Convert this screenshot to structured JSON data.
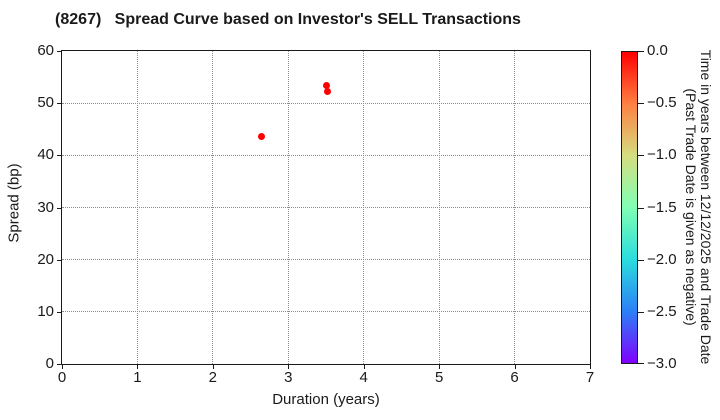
{
  "title": "(8267)   Spread Curve based on Investor's SELL Transactions",
  "chart_data": {
    "type": "scatter",
    "title": "(8267)   Spread Curve based on Investor's SELL Transactions",
    "xlabel": "Duration (years)",
    "ylabel": "Spread (bp)",
    "xlim": [
      0,
      7
    ],
    "ylim": [
      0,
      60
    ],
    "xticks": [
      0,
      1,
      2,
      3,
      4,
      5,
      6,
      7
    ],
    "yticks": [
      0,
      10,
      20,
      30,
      40,
      50,
      60
    ],
    "grid": true,
    "grid_style": "dotted",
    "points": [
      {
        "x": 2.65,
        "y": 43.7,
        "time_value": 0.0,
        "color": "#ff0000"
      },
      {
        "x": 3.5,
        "y": 53.4,
        "time_value": 0.0,
        "color": "#ff0000"
      },
      {
        "x": 3.52,
        "y": 52.2,
        "time_value": 0.0,
        "color": "#ff0000"
      }
    ],
    "colorbar": {
      "colormap": "rainbow",
      "vmin": -3.0,
      "vmax": 0.0,
      "tick_labels": [
        "0.0",
        "−0.5",
        "−1.0",
        "−1.5",
        "−2.0",
        "−2.5",
        "−3.0"
      ],
      "tick_values": [
        0.0,
        -0.5,
        -1.0,
        -1.5,
        -2.0,
        -2.5,
        -3.0
      ],
      "label_line1": "Time in years between 12/12/2025 and Trade Date",
      "label_line2": "(Past Trade Date is given as negative)",
      "gradient": [
        {
          "pos": 0.0,
          "color": "#ff0000"
        },
        {
          "pos": 0.1667,
          "color": "#ff8042"
        },
        {
          "pos": 0.3333,
          "color": "#d5dd80"
        },
        {
          "pos": 0.5,
          "color": "#80ffb4"
        },
        {
          "pos": 0.6667,
          "color": "#2bdddd"
        },
        {
          "pos": 0.8333,
          "color": "#2b80f6"
        },
        {
          "pos": 1.0,
          "color": "#8000ff"
        }
      ]
    }
  }
}
